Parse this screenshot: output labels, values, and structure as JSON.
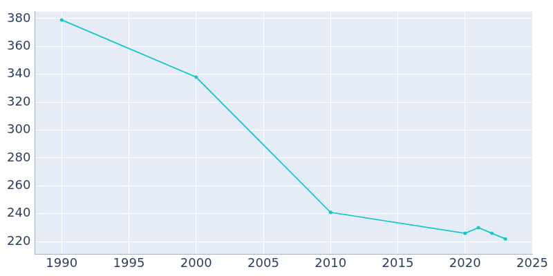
{
  "chart_data": {
    "type": "line",
    "x": [
      1990,
      2000,
      2010,
      2020,
      2021,
      2022,
      2023
    ],
    "values": [
      379,
      338,
      241,
      226,
      230,
      226,
      222
    ],
    "color": "#0fc8c8",
    "marker": "circle",
    "xlim": [
      1988,
      2025
    ],
    "xticks": [
      1990,
      1995,
      2000,
      2005,
      2010,
      2015,
      2020,
      2025
    ],
    "ylim": [
      211,
      385
    ],
    "yticks": [
      220,
      240,
      260,
      280,
      300,
      320,
      340,
      360,
      380
    ],
    "grid": true
  }
}
